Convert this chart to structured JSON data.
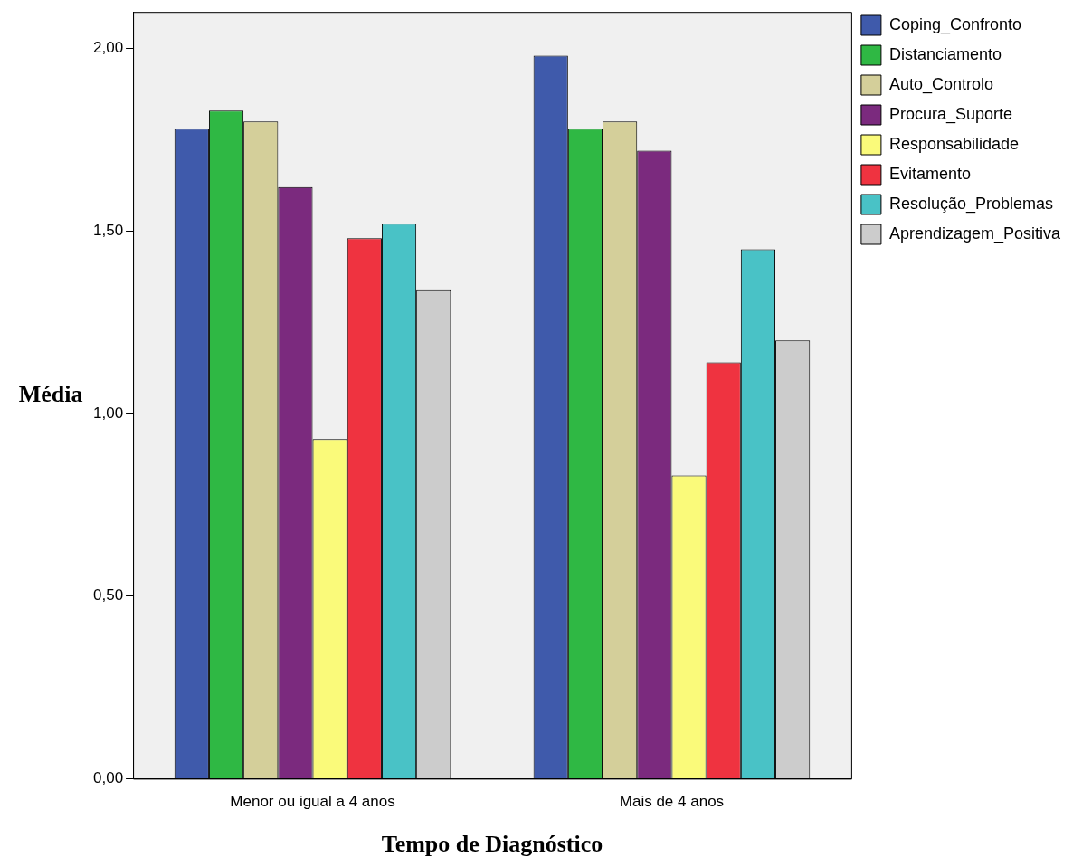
{
  "chart_data": {
    "type": "bar",
    "xlabel": "Tempo de Diagnóstico",
    "ylabel": "Média",
    "categories": [
      "Menor ou igual a 4 anos",
      "Mais de 4 anos"
    ],
    "series": [
      {
        "name": "Coping_Confronto",
        "color": "#3f5aab",
        "values": [
          1.78,
          1.98
        ]
      },
      {
        "name": "Distanciamento",
        "color": "#2fb844",
        "values": [
          1.83,
          1.78
        ]
      },
      {
        "name": "Auto_Controlo",
        "color": "#d4cf9a",
        "values": [
          1.8,
          1.8
        ]
      },
      {
        "name": "Procura_Suporte",
        "color": "#7b2a7e",
        "values": [
          1.62,
          1.72
        ]
      },
      {
        "name": "Responsabilidade",
        "color": "#fafa7a",
        "values": [
          0.93,
          0.83
        ]
      },
      {
        "name": "Evitamento",
        "color": "#ef3340",
        "values": [
          1.48,
          1.14
        ]
      },
      {
        "name": "Resolução_Problemas",
        "color": "#49c2c6",
        "values": [
          1.52,
          1.45
        ]
      },
      {
        "name": "Aprendizagem_Positiva",
        "color": "#cccccc",
        "values": [
          1.34,
          1.2
        ]
      }
    ],
    "ylim": [
      0,
      2.1
    ],
    "yticks": [
      {
        "value": 0,
        "label": "0,00"
      },
      {
        "value": 0.5,
        "label": "0,50"
      },
      {
        "value": 1,
        "label": "1,00"
      },
      {
        "value": 1.5,
        "label": "1,50"
      },
      {
        "value": 2,
        "label": "2,00"
      }
    ],
    "grid": false,
    "legend": "top right"
  }
}
